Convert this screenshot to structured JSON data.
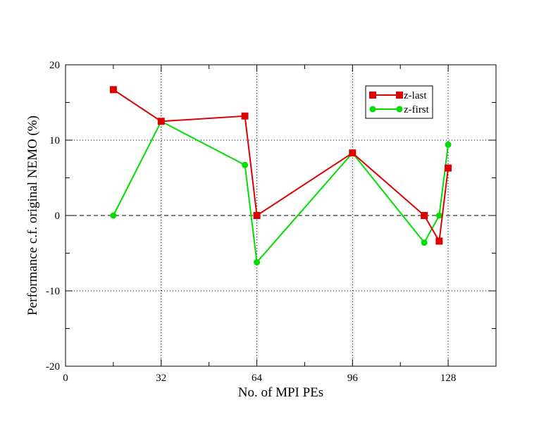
{
  "chart_data": {
    "type": "line",
    "title": "",
    "xlabel": "No. of MPI PEs",
    "ylabel": "Performance c.f. original NEMO (%)",
    "xlim": [
      0,
      144
    ],
    "ylim": [
      -20,
      20
    ],
    "x_ticks": [
      0,
      32,
      64,
      96,
      128
    ],
    "y_ticks": [
      -20,
      -10,
      0,
      10,
      20
    ],
    "x_tick_labels": [
      "0",
      "32",
      "64",
      "96",
      "128"
    ],
    "y_tick_labels": [
      "-20",
      "-10",
      "0",
      "10",
      "20"
    ],
    "grid": "dotted at labeled ticks",
    "reference_line": {
      "y": 0,
      "style": "dashed"
    },
    "legend_position": "top-right",
    "series": [
      {
        "name": "z-last",
        "color": "#dd0000",
        "marker": "square",
        "x": [
          16,
          32,
          60,
          64,
          96,
          120,
          125,
          128
        ],
        "y": [
          16.7,
          12.5,
          13.2,
          0.0,
          8.3,
          0.0,
          -3.4,
          6.3
        ]
      },
      {
        "name": "z-first",
        "color": "#00dd00",
        "marker": "circle",
        "x": [
          16,
          32,
          60,
          64,
          96,
          120,
          125,
          128
        ],
        "y": [
          0.0,
          12.5,
          6.7,
          -6.2,
          8.3,
          -3.6,
          0.0,
          9.4
        ]
      }
    ]
  }
}
